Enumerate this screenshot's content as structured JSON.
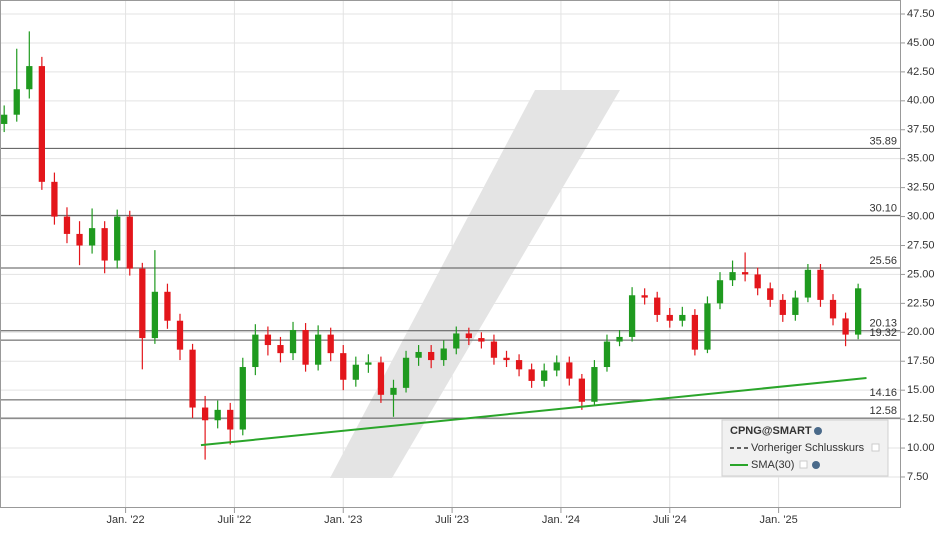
{
  "chart_data": {
    "type": "candlestick",
    "legend_title": "CPNG@SMART",
    "x": [
      -29,
      -26,
      -23,
      -20,
      -17,
      -14,
      -11,
      -8,
      -5,
      -2,
      1,
      4,
      7,
      10,
      13,
      16,
      19,
      22,
      25,
      28,
      31,
      34,
      37,
      40,
      43,
      46,
      49,
      52,
      55,
      58,
      61,
      64,
      67,
      70,
      73,
      76,
      79,
      82,
      85,
      88,
      91,
      94,
      97,
      100,
      103,
      106,
      109,
      112,
      115,
      118,
      121,
      124,
      127,
      130,
      133,
      136,
      139,
      142,
      145,
      148,
      151,
      154,
      157,
      160,
      163,
      166,
      169,
      172,
      175
    ],
    "open": [
      38.0,
      38.8,
      41,
      43,
      33,
      30,
      28.5,
      27.5,
      29,
      26.2,
      30,
      25.5,
      19.5,
      23.5,
      21,
      18.5,
      13.5,
      12.4,
      13.3,
      11.6,
      17,
      19.8,
      18.9,
      18.2,
      20.2,
      17.2,
      19.8,
      18.2,
      15.9,
      17.2,
      17.4,
      14.6,
      15.2,
      17.8,
      18.3,
      17.6,
      18.6,
      19.9,
      19.5,
      19.2,
      17.8,
      17.6,
      16.8,
      15.8,
      16.7,
      17.4,
      16.0,
      14.0,
      17.0,
      19.2,
      19.6,
      23.2,
      23.0,
      21.5,
      21.0,
      21.5,
      18.5,
      22.5,
      24.5,
      25.2,
      25.0,
      23.8,
      22.8,
      21.5,
      23.0,
      25.4,
      22.8,
      21.2,
      19.8
    ],
    "high": [
      39.6,
      44.5,
      46,
      43.8,
      33.8,
      30.8,
      29.6,
      30.7,
      29.6,
      30.6,
      30.5,
      26.0,
      27.1,
      24.2,
      21.6,
      19.0,
      14.5,
      14.1,
      13.9,
      17.8,
      20.7,
      20.5,
      19.6,
      20.9,
      20.8,
      20.6,
      20.4,
      18.9,
      17.9,
      18.1,
      17.9,
      15.9,
      18.4,
      18.9,
      18.9,
      19.3,
      20.5,
      20.4,
      20.0,
      19.8,
      18.4,
      18.1,
      17.3,
      17.3,
      18.0,
      17.9,
      16.4,
      17.6,
      19.8,
      20.2,
      23.9,
      23.8,
      23.5,
      22.1,
      22.2,
      22.0,
      23.1,
      25.2,
      26.2,
      26.9,
      25.6,
      24.3,
      23.3,
      23.6,
      25.9,
      25.9,
      23.3,
      21.7,
      24.2
    ],
    "low": [
      37.3,
      38.2,
      40.2,
      32.3,
      29.3,
      27.7,
      25.8,
      26.8,
      25.1,
      25.5,
      24.9,
      16.8,
      19.0,
      20.3,
      17.6,
      12.6,
      9.0,
      11.7,
      10.3,
      11.1,
      16.3,
      18.0,
      17.4,
      17.6,
      16.6,
      16.7,
      17.5,
      15.0,
      15.3,
      16.5,
      13.9,
      12.7,
      14.8,
      17.1,
      16.9,
      17.1,
      18.1,
      18.9,
      18.6,
      17.2,
      17.0,
      16.2,
      15.2,
      15.3,
      16.2,
      15.4,
      13.3,
      13.7,
      16.6,
      18.8,
      19.2,
      22.4,
      20.9,
      20.4,
      20.5,
      18.0,
      18.2,
      22.0,
      24.0,
      24.4,
      23.2,
      22.2,
      20.9,
      21.0,
      22.6,
      22.2,
      20.6,
      18.8,
      19.4
    ],
    "close": [
      38.8,
      41,
      43,
      33,
      30,
      28.5,
      27.5,
      29,
      26.2,
      30,
      25.5,
      19.5,
      23.5,
      21,
      18.5,
      13.5,
      12.4,
      13.3,
      11.6,
      17,
      19.8,
      18.9,
      18.2,
      20.2,
      17.2,
      19.8,
      18.2,
      15.9,
      17.2,
      17.4,
      14.6,
      15.2,
      17.8,
      18.3,
      17.6,
      18.6,
      19.9,
      19.5,
      19.2,
      17.8,
      17.6,
      16.8,
      15.8,
      16.7,
      17.4,
      16.0,
      14.0,
      17.0,
      19.2,
      19.6,
      23.2,
      23.0,
      21.5,
      21.0,
      21.5,
      18.5,
      22.5,
      24.5,
      25.2,
      25.0,
      23.8,
      22.8,
      21.5,
      23.0,
      25.4,
      22.8,
      21.2,
      19.8,
      23.8
    ],
    "up_color": "#1f9a1f",
    "down_color": "#e3161b",
    "series": [
      {
        "name": "SMA(30)",
        "color": "#2aa52a",
        "x": [
          18,
          177
        ],
        "values": [
          10.25,
          16.05
        ]
      }
    ],
    "reference": {
      "name": "Vorheriger Schlusskurs",
      "color": "#333333"
    },
    "levels": {
      "values": [
        35.89,
        30.1,
        25.56,
        20.13,
        19.32,
        14.16,
        12.58
      ],
      "value_labels": [
        "35.89",
        "30.10",
        "25.56",
        "20.13",
        "19.32",
        "14.16",
        "12.58"
      ]
    },
    "xlim": [
      -30,
      185
    ],
    "ylim": [
      4.82,
      48.71
    ],
    "xticks": [
      {
        "value": 0,
        "label": "Jan. '22"
      },
      {
        "value": 26,
        "label": "Juli '22"
      },
      {
        "value": 52,
        "label": "Jan. '23"
      },
      {
        "value": 78,
        "label": "Juli '23"
      },
      {
        "value": 104,
        "label": "Jan. '24"
      },
      {
        "value": 130,
        "label": "Juli '24"
      },
      {
        "value": 156,
        "label": "Jan. '25"
      }
    ],
    "yticks": [
      {
        "value": 7.5,
        "label": "7.50"
      },
      {
        "value": 10,
        "label": "10.00"
      },
      {
        "value": 12.5,
        "label": "12.50"
      },
      {
        "value": 15,
        "label": "15.00"
      },
      {
        "value": 17.5,
        "label": "17.50"
      },
      {
        "value": 20,
        "label": "20.00"
      },
      {
        "value": 22.5,
        "label": "22.50"
      },
      {
        "value": 25,
        "label": "25.00"
      },
      {
        "value": 27.5,
        "label": "27.50"
      },
      {
        "value": 30,
        "label": "30.00"
      },
      {
        "value": 32.5,
        "label": "32.50"
      },
      {
        "value": 35,
        "label": "35.00"
      },
      {
        "value": 37.5,
        "label": "37.50"
      },
      {
        "value": 40,
        "label": "40.00"
      },
      {
        "value": 42.5,
        "label": "42.50"
      },
      {
        "value": 45,
        "label": "45.00"
      },
      {
        "value": 47.5,
        "label": "47.50"
      }
    ],
    "grid": true
  }
}
